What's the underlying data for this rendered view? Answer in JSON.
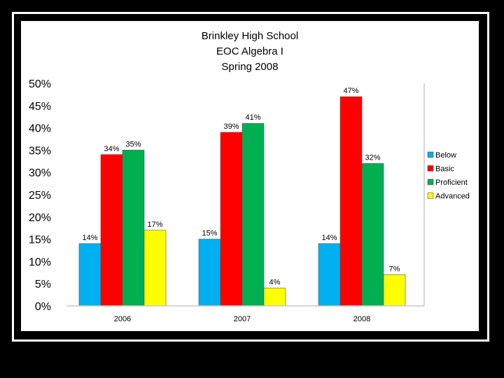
{
  "colors": {
    "page_background": "#000000",
    "frame": "#ffffff",
    "panel": "#ffffff",
    "axis": "#c8c8c8",
    "text": "#000000"
  },
  "chart_data": {
    "type": "bar",
    "title_lines": [
      "Brinkley High School",
      "EOC Algebra I",
      "Spring 2008"
    ],
    "categories": [
      "2006",
      "2007",
      "2008"
    ],
    "series": [
      {
        "name": "Below",
        "color": "#00b0f0",
        "values": [
          14,
          15,
          14
        ],
        "labels": [
          "14%",
          "15%",
          "14%"
        ]
      },
      {
        "name": "Basic",
        "color": "#ff0000",
        "values": [
          34,
          39,
          47
        ],
        "labels": [
          "34%",
          "39%",
          "47%"
        ]
      },
      {
        "name": "Proficient",
        "color": "#00b050",
        "values": [
          35,
          41,
          32
        ],
        "labels": [
          "35%",
          "41%",
          "32%"
        ]
      },
      {
        "name": "Advanced",
        "color": "#ffff00",
        "values": [
          17,
          4,
          7
        ],
        "labels": [
          "17%",
          "4%",
          "7%"
        ]
      }
    ],
    "y_ticks": [
      0,
      5,
      10,
      15,
      20,
      25,
      30,
      35,
      40,
      45,
      50
    ],
    "y_tick_labels": [
      "0%",
      "5%",
      "10%",
      "15%",
      "20%",
      "25%",
      "30%",
      "35%",
      "40%",
      "45%",
      "50%"
    ],
    "ylim": [
      0,
      50
    ],
    "grid": false,
    "legend_position": "right"
  }
}
